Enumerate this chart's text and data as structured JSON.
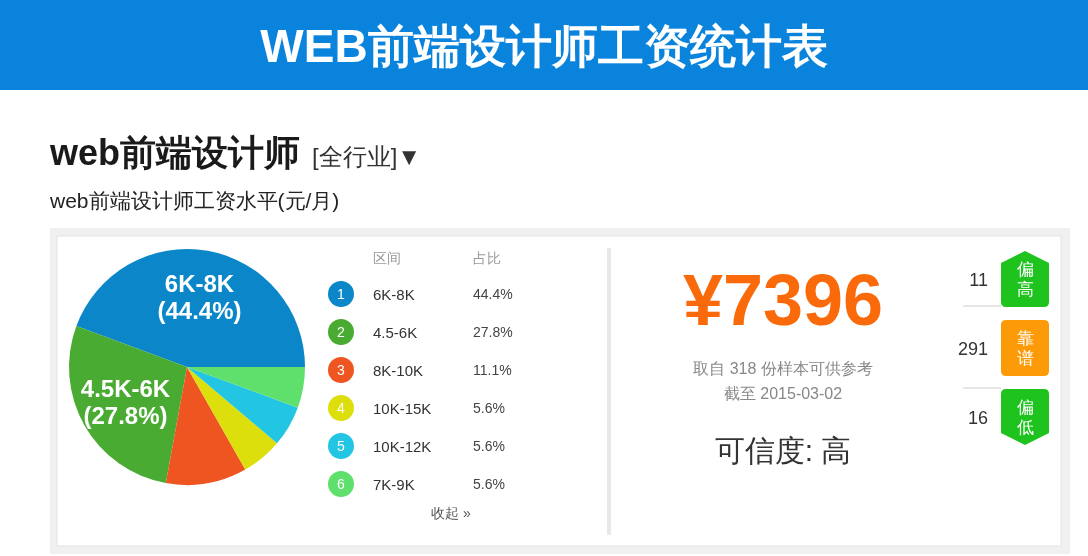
{
  "chart_data": [
    {
      "type": "other",
      "title": "WEB前端设计师工资统计表",
      "subtitle": "web前端设计师 [全行业]▼"
    },
    {
      "type": "pie",
      "title": "web前端设计师工资水平(元/月)",
      "categories": [
        "6K-8K",
        "4.5-6K",
        "8K-10K",
        "10K-15K",
        "10K-12K",
        "7K-9K"
      ],
      "values": [
        44.4,
        27.8,
        11.1,
        5.6,
        5.6,
        5.6
      ],
      "colors": [
        "#0b87c9",
        "#4aab32",
        "#ee5521",
        "#dcdf0c",
        "#22c6e2",
        "#5fe06c"
      ],
      "value_labels": [
        "44.4%",
        "27.8%",
        "11.1%",
        "5.6%",
        "5.6%",
        "5.6%"
      ],
      "legend": "right",
      "annotations": [
        "区间",
        "占比",
        "1",
        "2",
        "3",
        "4",
        "5",
        "6",
        "收起 »",
        {
          "text": "6K-8K (44.4%)",
          "x": "6K-8K"
        },
        {
          "text": "4.5K-6K (27.8%)",
          "x": "4.5-6K"
        }
      ]
    },
    {
      "type": "other",
      "annotations": [
        "¥7396",
        "取自 318 份样本可供参考",
        "截至 2015-03-02",
        "可信度: 高"
      ],
      "categories": [
        "偏高",
        "靠谱",
        "偏低"
      ],
      "values": [
        11,
        291,
        16
      ],
      "colors": [
        "#1ec31e",
        "#fd9a08",
        "#1ec31e"
      ],
      "data_labels": true
    }
  ]
}
